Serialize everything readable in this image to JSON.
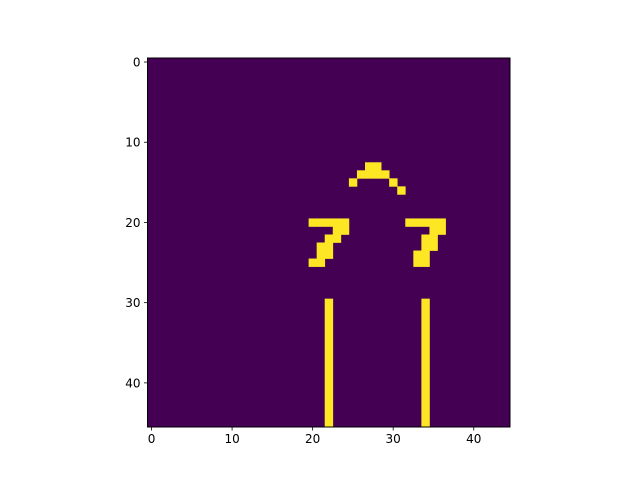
{
  "chart_data": {
    "type": "heatmap",
    "title": "",
    "xlabel": "",
    "ylabel": "",
    "grid": false,
    "legend": "none",
    "shape": [
      46,
      45
    ],
    "xlim": [
      -0.5,
      44.5
    ],
    "ylim": [
      45.5,
      -0.5
    ],
    "xticks": [
      0,
      10,
      20,
      30,
      40
    ],
    "yticks": [
      0,
      10,
      20,
      30,
      40
    ],
    "xtick_labels": [
      "0",
      "10",
      "20",
      "30",
      "40"
    ],
    "ytick_labels": [
      "0",
      "10",
      "20",
      "30",
      "40"
    ],
    "colormap": "viridis",
    "values": [
      0,
      1
    ],
    "colors": {
      "background": "#440154",
      "foreground": "#fde725"
    },
    "nonzero_cells": [
      [
        13,
        27
      ],
      [
        13,
        28
      ],
      [
        14,
        26
      ],
      [
        14,
        27
      ],
      [
        14,
        28
      ],
      [
        14,
        29
      ],
      [
        15,
        25
      ],
      [
        15,
        30
      ],
      [
        16,
        31
      ],
      [
        20,
        20
      ],
      [
        20,
        21
      ],
      [
        20,
        22
      ],
      [
        20,
        23
      ],
      [
        20,
        24
      ],
      [
        20,
        32
      ],
      [
        20,
        33
      ],
      [
        20,
        34
      ],
      [
        20,
        35
      ],
      [
        20,
        36
      ],
      [
        21,
        23
      ],
      [
        21,
        24
      ],
      [
        21,
        35
      ],
      [
        21,
        36
      ],
      [
        22,
        22
      ],
      [
        22,
        23
      ],
      [
        22,
        34
      ],
      [
        22,
        35
      ],
      [
        23,
        21
      ],
      [
        23,
        22
      ],
      [
        23,
        34
      ],
      [
        23,
        35
      ],
      [
        24,
        21
      ],
      [
        24,
        22
      ],
      [
        24,
        33
      ],
      [
        24,
        34
      ],
      [
        25,
        20
      ],
      [
        25,
        21
      ],
      [
        25,
        33
      ],
      [
        25,
        34
      ],
      [
        30,
        22
      ],
      [
        31,
        22
      ],
      [
        32,
        22
      ],
      [
        33,
        22
      ],
      [
        34,
        22
      ],
      [
        35,
        22
      ],
      [
        36,
        22
      ],
      [
        37,
        22
      ],
      [
        38,
        22
      ],
      [
        39,
        22
      ],
      [
        40,
        22
      ],
      [
        41,
        22
      ],
      [
        42,
        22
      ],
      [
        43,
        22
      ],
      [
        44,
        22
      ],
      [
        45,
        22
      ],
      [
        30,
        34
      ],
      [
        31,
        34
      ],
      [
        32,
        34
      ],
      [
        33,
        34
      ],
      [
        34,
        34
      ],
      [
        35,
        34
      ],
      [
        36,
        34
      ],
      [
        37,
        34
      ],
      [
        38,
        34
      ],
      [
        39,
        34
      ],
      [
        40,
        34
      ],
      [
        41,
        34
      ],
      [
        42,
        34
      ],
      [
        43,
        34
      ],
      [
        44,
        34
      ],
      [
        45,
        34
      ]
    ]
  }
}
